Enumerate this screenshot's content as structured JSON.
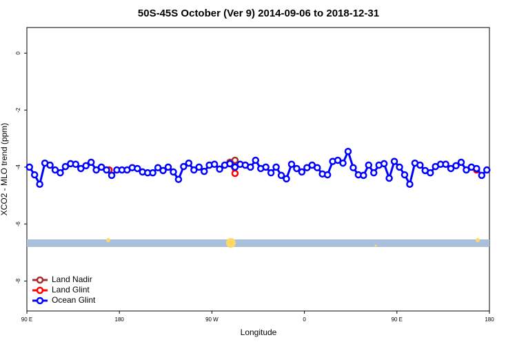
{
  "chart_data": {
    "type": "line",
    "title": "50S-45S October (Ver 9)   2014-09-06 to 2018-12-31",
    "xlabel": "Longitude",
    "ylabel": "XCO2 - MLO trend (ppm)",
    "xlim": [
      90,
      540
    ],
    "xticks": [
      {
        "value": 90,
        "label": "90 E"
      },
      {
        "value": 180,
        "label": "180"
      },
      {
        "value": 270,
        "label": "90 W"
      },
      {
        "value": 360,
        "label": "0"
      },
      {
        "value": 450,
        "label": "90 E"
      },
      {
        "value": 540,
        "label": "180"
      }
    ],
    "ylim": [
      -9.05,
      0.9
    ],
    "yticks": [
      0,
      -2,
      -4,
      -6,
      -8
    ],
    "legend": "bottom-left",
    "series": [
      {
        "name": "Land Nadir",
        "color": "#a52a2a",
        "x": [
          287.5,
          292.5
        ],
        "values": [
          -3.83,
          -3.76
        ]
      },
      {
        "name": "Land Glint",
        "color": "#ff0000",
        "x": [
          170,
          287.5,
          292.5,
          527.5
        ],
        "values": [
          -4.1,
          -3.88,
          -4.22,
          -4.1
        ]
      },
      {
        "name": "Ocean Glint",
        "color": "#0000ff",
        "x": [
          92.5,
          97.5,
          102.5,
          107.5,
          112.5,
          117.5,
          122.5,
          127.5,
          132.5,
          137.5,
          142.5,
          147.5,
          152.5,
          157.5,
          162.5,
          167.5,
          172.5,
          177.5,
          182.5,
          187.5,
          192.5,
          197.5,
          202.5,
          207.5,
          212.5,
          217.5,
          222.5,
          227.5,
          232.5,
          237.5,
          242.5,
          247.5,
          252.5,
          257.5,
          262.5,
          267.5,
          272.5,
          277.5,
          282.5,
          287.5,
          292.5,
          297.5,
          302.5,
          307.5,
          312.5,
          317.5,
          322.5,
          327.5,
          332.5,
          337.5,
          342.5,
          347.5,
          352.5,
          357.5,
          362.5,
          367.5,
          372.5,
          377.5,
          382.5,
          387.5,
          392.5,
          397.5,
          402.5,
          407.5,
          412.5,
          417.5,
          422.5,
          427.5,
          432.5,
          437.5,
          442.5,
          447.5,
          452.5,
          457.5,
          462.5,
          467.5,
          472.5,
          477.5,
          482.5,
          487.5,
          492.5,
          497.5,
          502.5,
          507.5,
          512.5,
          517.5,
          522.5,
          527.5,
          532.5,
          537.5
        ],
        "values": [
          -4.0,
          -4.27,
          -4.6,
          -3.86,
          -3.93,
          -4.1,
          -4.2,
          -3.98,
          -3.88,
          -3.9,
          -4.05,
          -3.95,
          -3.83,
          -4.1,
          -4.0,
          -4.1,
          -4.29,
          -4.1,
          -4.1,
          -4.1,
          -4.02,
          -4.05,
          -4.17,
          -4.2,
          -4.2,
          -4.02,
          -4.12,
          -4.0,
          -4.17,
          -4.43,
          -3.98,
          -3.86,
          -4.1,
          -4.0,
          -4.15,
          -3.93,
          -3.9,
          -4.07,
          -3.93,
          -3.88,
          -4.0,
          -3.9,
          -3.93,
          -4.0,
          -3.76,
          -4.05,
          -4.0,
          -4.2,
          -4.0,
          -4.29,
          -4.41,
          -3.9,
          -4.05,
          -4.17,
          -4.02,
          -3.93,
          -4.02,
          -4.24,
          -4.27,
          -3.8,
          -3.76,
          -3.86,
          -3.45,
          -4.02,
          -4.27,
          -4.29,
          -3.93,
          -4.2,
          -3.93,
          -3.88,
          -4.39,
          -3.8,
          -4.0,
          -4.27,
          -4.6,
          -3.86,
          -3.93,
          -4.12,
          -4.2,
          -3.98,
          -3.9,
          -3.9,
          -4.05,
          -3.95,
          -3.83,
          -4.1,
          -4.0,
          -4.05,
          -4.29,
          -4.1
        ]
      }
    ]
  }
}
